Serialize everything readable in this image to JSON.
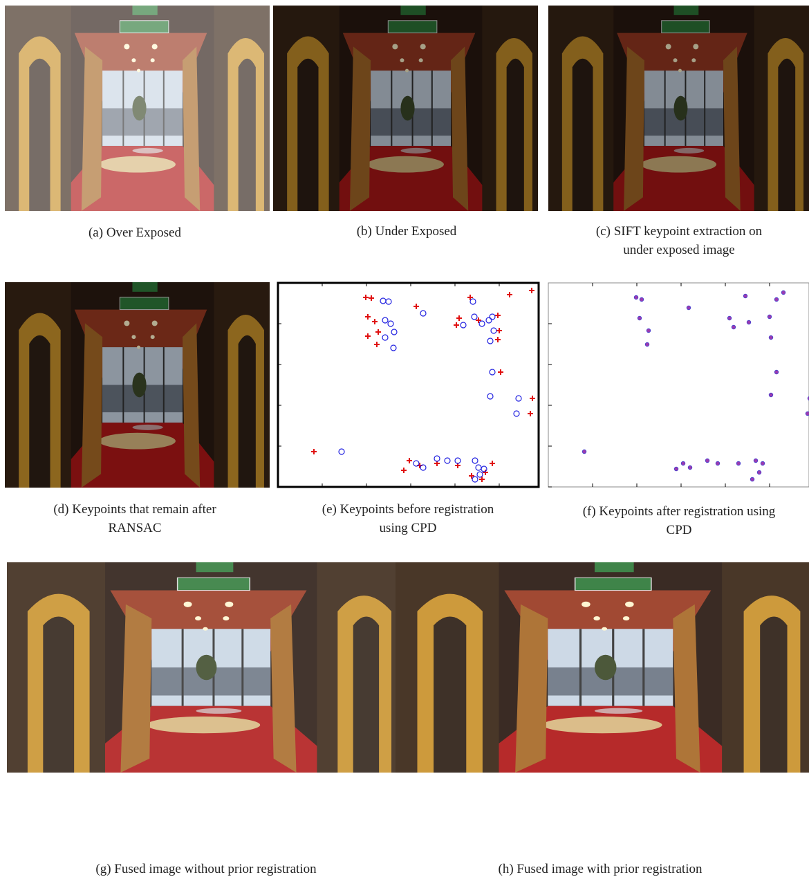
{
  "panels": [
    {
      "caption": [
        "(a) Over Exposed"
      ]
    },
    {
      "caption": [
        "(b) Under Exposed"
      ]
    },
    {
      "caption": [
        "(c)  SIFT keypoint extraction on",
        "under exposed image"
      ]
    },
    {
      "caption": [
        "(d) Keypoints that remain after",
        "RANSAC"
      ]
    },
    {
      "caption": [
        "(e) Keypoints before registration",
        "using CPD"
      ]
    },
    {
      "caption": [
        "(f) Keypoints after registration using",
        "CPD"
      ]
    },
    {
      "caption": [
        "(g) Fused image without prior registration"
      ]
    },
    {
      "caption": [
        "(h) Fused image with prior registration"
      ]
    }
  ]
}
